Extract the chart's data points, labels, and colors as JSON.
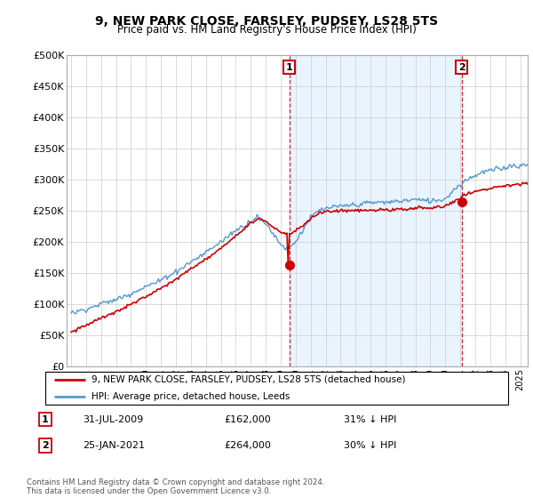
{
  "title": "9, NEW PARK CLOSE, FARSLEY, PUDSEY, LS28 5TS",
  "subtitle": "Price paid vs. HM Land Registry's House Price Index (HPI)",
  "ylabel_ticks": [
    "£0",
    "£50K",
    "£100K",
    "£150K",
    "£200K",
    "£250K",
    "£300K",
    "£350K",
    "£400K",
    "£450K",
    "£500K"
  ],
  "ytick_values": [
    0,
    50000,
    100000,
    150000,
    200000,
    250000,
    300000,
    350000,
    400000,
    450000,
    500000
  ],
  "hpi_color": "#5599cc",
  "hpi_fill_color": "#ddeeff",
  "price_color": "#cc0000",
  "sale1_year": 2009.583,
  "sale1_price": 162000,
  "sale2_year": 2021.083,
  "sale2_price": 264000,
  "legend_line1": "9, NEW PARK CLOSE, FARSLEY, PUDSEY, LS28 5TS (detached house)",
  "legend_line2": "HPI: Average price, detached house, Leeds",
  "sale1_date_str": "31-JUL-2009",
  "sale1_price_str": "£162,000",
  "sale1_pct_str": "31% ↓ HPI",
  "sale2_date_str": "25-JAN-2021",
  "sale2_price_str": "£264,000",
  "sale2_pct_str": "30% ↓ HPI",
  "footnote": "Contains HM Land Registry data © Crown copyright and database right 2024.\nThis data is licensed under the Open Government Licence v3.0."
}
